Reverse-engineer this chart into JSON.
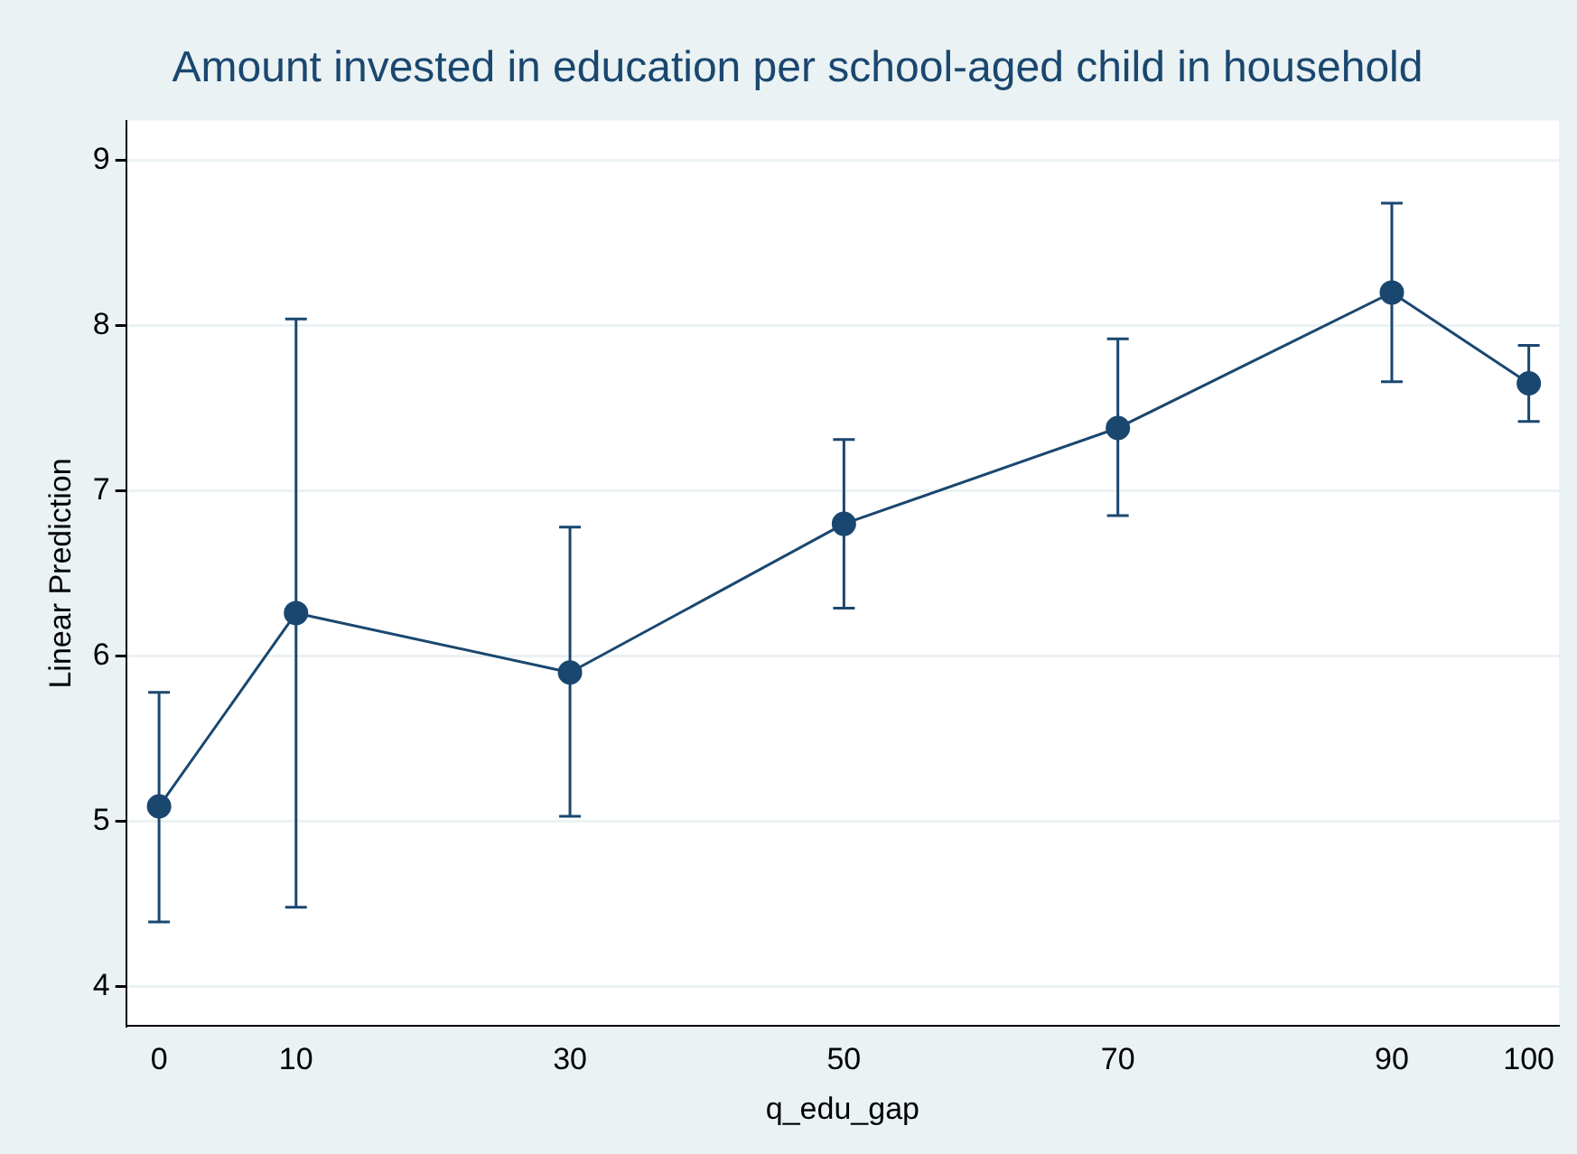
{
  "chart_data": {
    "type": "line",
    "title": "Amount invested in education per school-aged child in household",
    "xlabel": "q_edu_gap",
    "ylabel": "Linear Prediction",
    "x": [
      0,
      10,
      30,
      50,
      70,
      90,
      100
    ],
    "values": [
      5.09,
      6.26,
      5.9,
      6.8,
      7.38,
      8.2,
      7.65
    ],
    "errors": [
      [
        4.39,
        5.78
      ],
      [
        4.48,
        8.04
      ],
      [
        5.03,
        6.78
      ],
      [
        6.29,
        7.31
      ],
      [
        6.85,
        7.92
      ],
      [
        7.66,
        8.74
      ],
      [
        7.42,
        7.88
      ]
    ],
    "color": "#1a476f",
    "marker": "circle",
    "line_style": "solid",
    "xlim": [
      -2.4,
      102.2
    ],
    "xticks": [
      0,
      10,
      30,
      50,
      70,
      90,
      100
    ],
    "ylim": [
      3.76,
      9.24
    ],
    "yticks": [
      4,
      5,
      6,
      7,
      8,
      9
    ],
    "grid": "y",
    "legend": false
  }
}
